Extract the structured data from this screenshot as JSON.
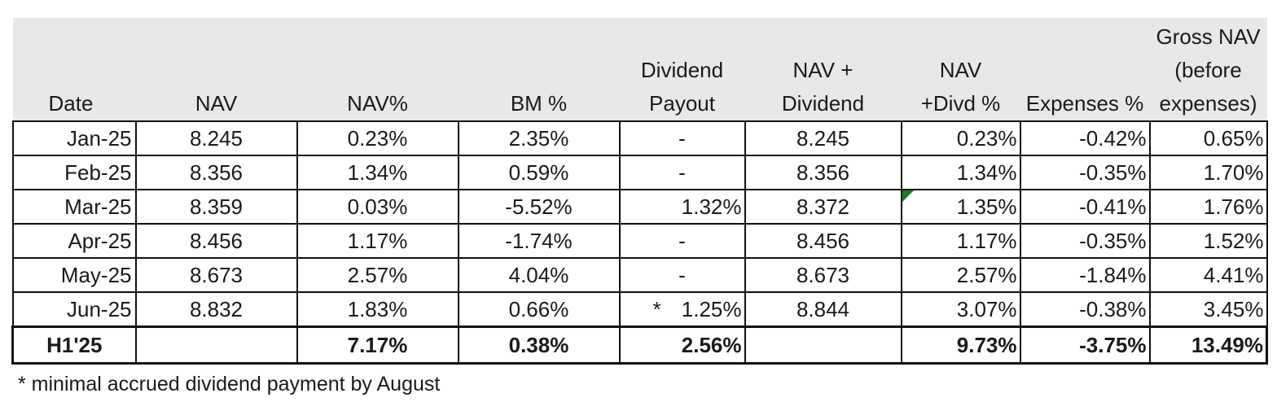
{
  "table": {
    "headers": [
      "Date",
      "NAV",
      "NAV%",
      "BM %",
      "Dividend\nPayout",
      "NAV +\nDividend",
      "NAV\n+Divd %",
      "Expenses %",
      "Gross NAV\n(before\nexpenses)"
    ],
    "rows": [
      {
        "date": "Jan-25",
        "nav": "8.245",
        "nav_pct": "0.23%",
        "bm_pct": "2.35%",
        "div": "-",
        "div_star": "",
        "nav_div": "8.245",
        "nav_divd_pct": "0.23%",
        "exp_pct": "-0.42%",
        "gross": "0.65%"
      },
      {
        "date": "Feb-25",
        "nav": "8.356",
        "nav_pct": "1.34%",
        "bm_pct": "0.59%",
        "div": "-",
        "div_star": "",
        "nav_div": "8.356",
        "nav_divd_pct": "1.34%",
        "exp_pct": "-0.35%",
        "gross": "1.70%"
      },
      {
        "date": "Mar-25",
        "nav": "8.359",
        "nav_pct": "0.03%",
        "bm_pct": "-5.52%",
        "div": "1.32%",
        "div_star": "",
        "nav_div": "8.372",
        "nav_divd_pct": "1.35%",
        "exp_pct": "-0.41%",
        "gross": "1.76%"
      },
      {
        "date": "Apr-25",
        "nav": "8.456",
        "nav_pct": "1.17%",
        "bm_pct": "-1.74%",
        "div": "-",
        "div_star": "",
        "nav_div": "8.456",
        "nav_divd_pct": "1.17%",
        "exp_pct": "-0.35%",
        "gross": "1.52%"
      },
      {
        "date": "May-25",
        "nav": "8.673",
        "nav_pct": "2.57%",
        "bm_pct": "4.04%",
        "div": "-",
        "div_star": "",
        "nav_div": "8.673",
        "nav_divd_pct": "2.57%",
        "exp_pct": "-1.84%",
        "gross": "4.41%"
      },
      {
        "date": "Jun-25",
        "nav": "8.832",
        "nav_pct": "1.83%",
        "bm_pct": "0.66%",
        "div": "1.25%",
        "div_star": "*",
        "nav_div": "8.844",
        "nav_divd_pct": "3.07%",
        "exp_pct": "-0.38%",
        "gross": "3.45%"
      }
    ],
    "total": {
      "date": "H1'25",
      "nav": "",
      "nav_pct": "7.17%",
      "bm_pct": "0.38%",
      "div": "2.56%",
      "nav_div": "",
      "nav_divd_pct": "9.73%",
      "exp_pct": "-3.75%",
      "gross": "13.49%"
    },
    "marker_color": "#1f7a1f",
    "header_bg": "#e8e8e8"
  },
  "footnote": "* minimal accrued dividend payment by August"
}
